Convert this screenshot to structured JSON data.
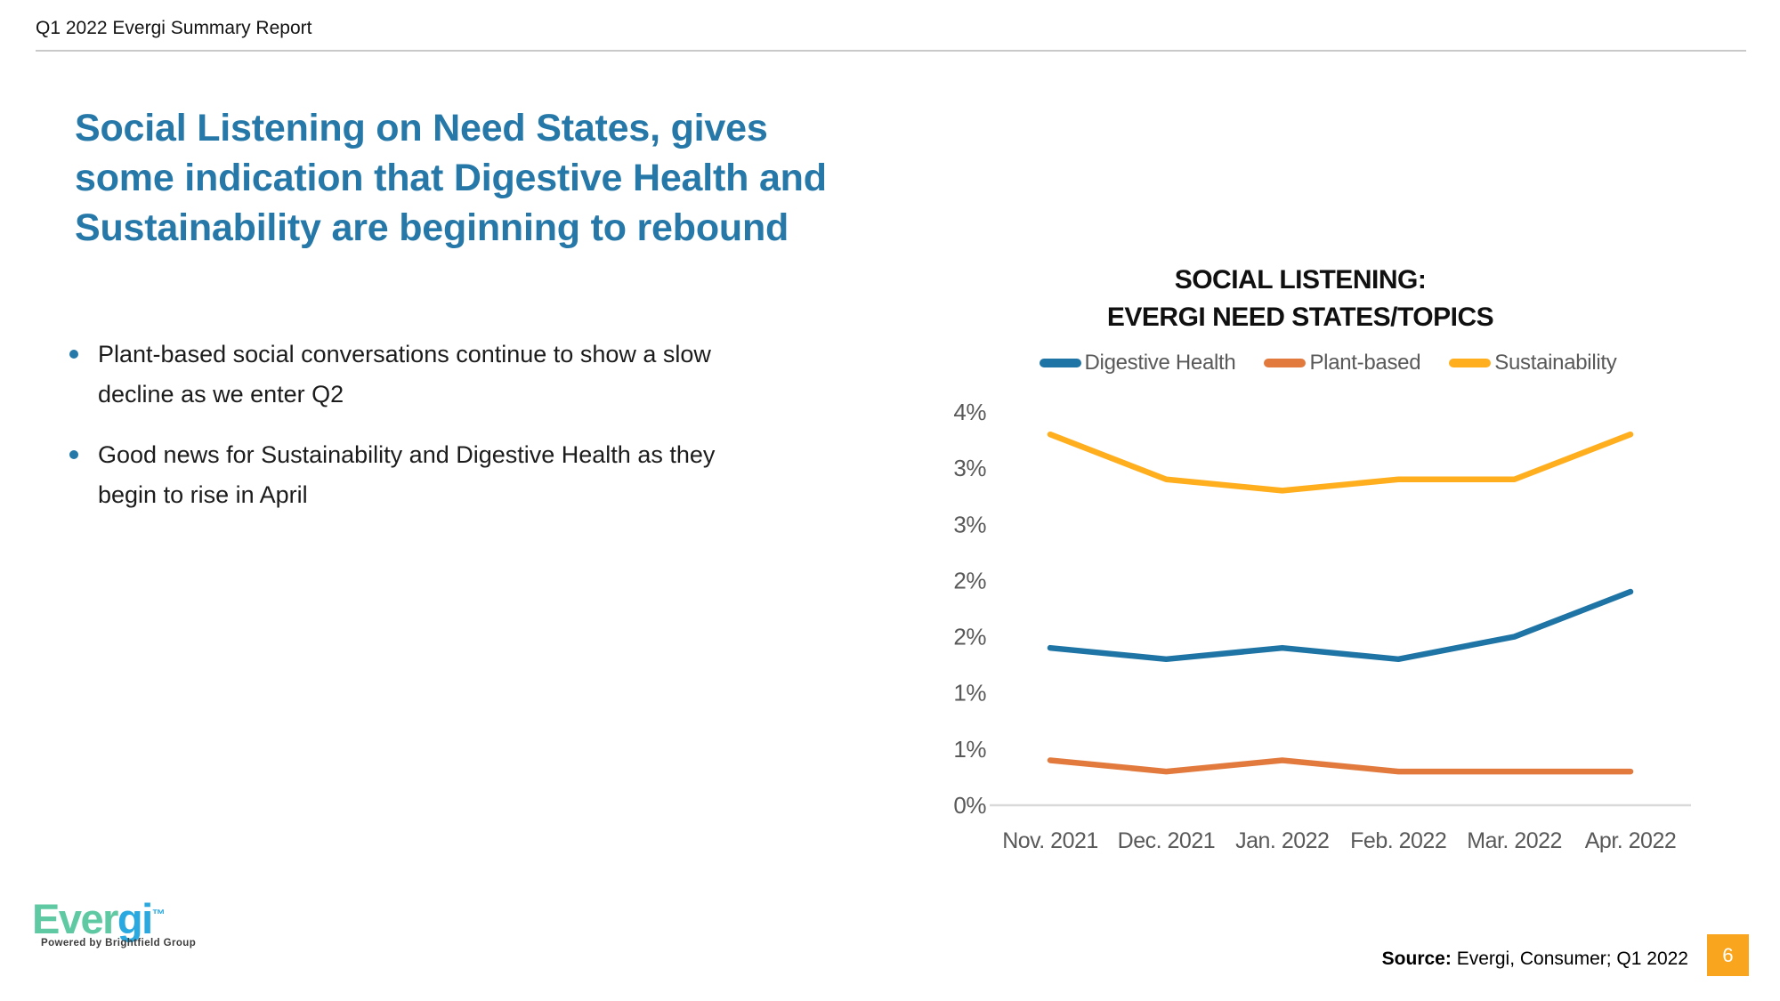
{
  "slide": {
    "header": "Q1 2022 Evergi Summary Report",
    "title_lines": [
      "Social Listening on Need States, gives",
      "some indication that Digestive Health and",
      "Sustainability are beginning to rebound"
    ],
    "bullets": [
      "Plant-based social conversations continue to show a slow decline as we enter Q2",
      "Good news for Sustainability and Digestive Health as they begin to rise in April"
    ],
    "source": {
      "label": "Source:",
      "text": " Evergi, Consumer; Q1 2022"
    },
    "page_number": "6",
    "logo": {
      "part_green": "Ever",
      "part_blue": "gi",
      "trademark": "™",
      "tagline": "Powered by Brightfield Group"
    }
  },
  "chart": {
    "title_lines": [
      "SOCIAL LISTENING:",
      "EVERGI NEED STATES/TOPICS"
    ]
  },
  "chart_data": {
    "type": "line",
    "title": "SOCIAL LISTENING: EVERGI NEED STATES/TOPICS",
    "categories": [
      "Nov. 2021",
      "Dec. 2021",
      "Jan. 2022",
      "Feb. 2022",
      "Mar. 2022",
      "Apr. 2022"
    ],
    "series": [
      {
        "name": "Digestive Health",
        "color": "#1e74a5",
        "values": [
          1.4,
          1.3,
          1.4,
          1.3,
          1.5,
          1.9
        ]
      },
      {
        "name": "Plant-based",
        "color": "#e27a3e",
        "values": [
          0.4,
          0.3,
          0.4,
          0.3,
          0.3,
          0.3
        ]
      },
      {
        "name": "Sustainability",
        "color": "#ffae1e",
        "values": [
          3.3,
          2.9,
          2.8,
          2.9,
          2.9,
          3.3
        ]
      }
    ],
    "ylim": [
      0,
      3.5
    ],
    "ytick_step": 0.5,
    "ytick_labels_top_to_bottom": [
      "4%",
      "3%",
      "3%",
      "2%",
      "2%",
      "1%",
      "1%",
      "0%"
    ],
    "xlabel": "",
    "ylabel": "",
    "grid": false,
    "legend_position": "top"
  },
  "colors": {
    "title_text": "#2578a8",
    "accent_orange": "#f9a61e",
    "axis_text": "#595959",
    "axis_line": "#d9d9d9",
    "logo_green": "#5fc9a3",
    "logo_blue": "#2aa9e0"
  }
}
